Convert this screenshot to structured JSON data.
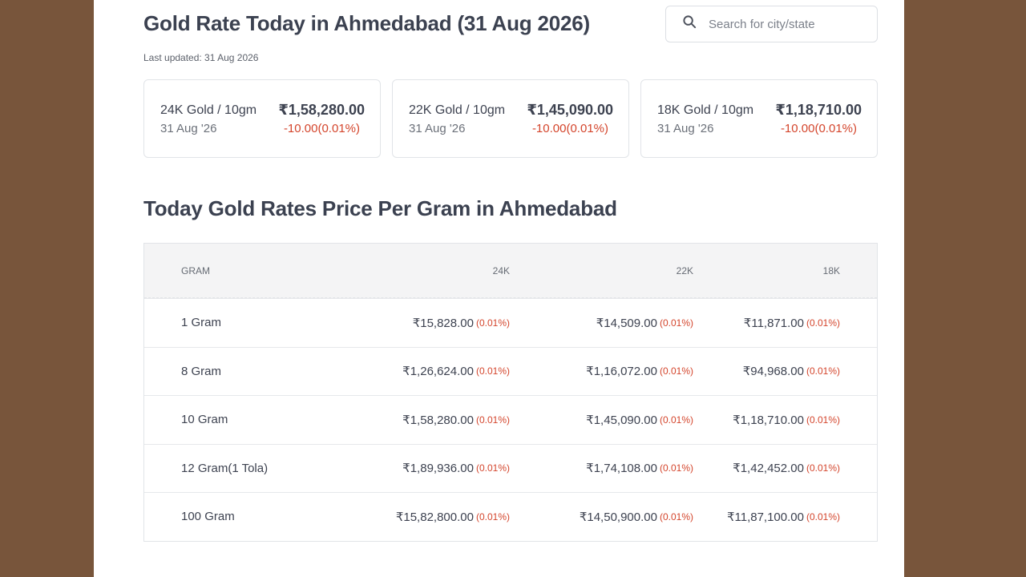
{
  "header": {
    "title": "Gold Rate Today in Ahmedabad (31 Aug 2026)",
    "last_updated": "Last updated: 31 Aug 2026"
  },
  "search": {
    "placeholder": "Search for city/state",
    "icon": "search-icon"
  },
  "cards": [
    {
      "label": "24K Gold / 10gm",
      "date": "31 Aug '26",
      "price": "₹1,58,280.00",
      "change": "-10.00(0.01%)"
    },
    {
      "label": "22K Gold / 10gm",
      "date": "31 Aug '26",
      "price": "₹1,45,090.00",
      "change": "-10.00(0.01%)"
    },
    {
      "label": "18K Gold / 10gm",
      "date": "31 Aug '26",
      "price": "₹1,18,710.00",
      "change": "-10.00(0.01%)"
    }
  ],
  "section": {
    "title": "Today Gold Rates Price Per Gram in Ahmedabad"
  },
  "table": {
    "headers": [
      "GRAM",
      "24K",
      "22K",
      "18K"
    ],
    "rows": [
      {
        "gram": "1 Gram",
        "k24": "₹15,828.00",
        "k24_pct": "(0.01%)",
        "k22": "₹14,509.00",
        "k22_pct": "(0.01%)",
        "k18": "₹11,871.00",
        "k18_pct": "(0.01%)"
      },
      {
        "gram": "8 Gram",
        "k24": "₹1,26,624.00",
        "k24_pct": "(0.01%)",
        "k22": "₹1,16,072.00",
        "k22_pct": "(0.01%)",
        "k18": "₹94,968.00",
        "k18_pct": "(0.01%)"
      },
      {
        "gram": "10 Gram",
        "k24": "₹1,58,280.00",
        "k24_pct": "(0.01%)",
        "k22": "₹1,45,090.00",
        "k22_pct": "(0.01%)",
        "k18": "₹1,18,710.00",
        "k18_pct": "(0.01%)"
      },
      {
        "gram": "12 Gram(1 Tola)",
        "k24": "₹1,89,936.00",
        "k24_pct": "(0.01%)",
        "k22": "₹1,74,108.00",
        "k22_pct": "(0.01%)",
        "k18": "₹1,42,452.00",
        "k18_pct": "(0.01%)"
      },
      {
        "gram": "100 Gram",
        "k24": "₹15,82,800.00",
        "k24_pct": "(0.01%)",
        "k22": "₹14,50,900.00",
        "k22_pct": "(0.01%)",
        "k18": "₹11,87,100.00",
        "k18_pct": "(0.01%)"
      }
    ]
  },
  "colors": {
    "background": "#78553b",
    "panel": "#ffffff",
    "heading": "#3b4150",
    "negative_change": "#d4452c"
  }
}
